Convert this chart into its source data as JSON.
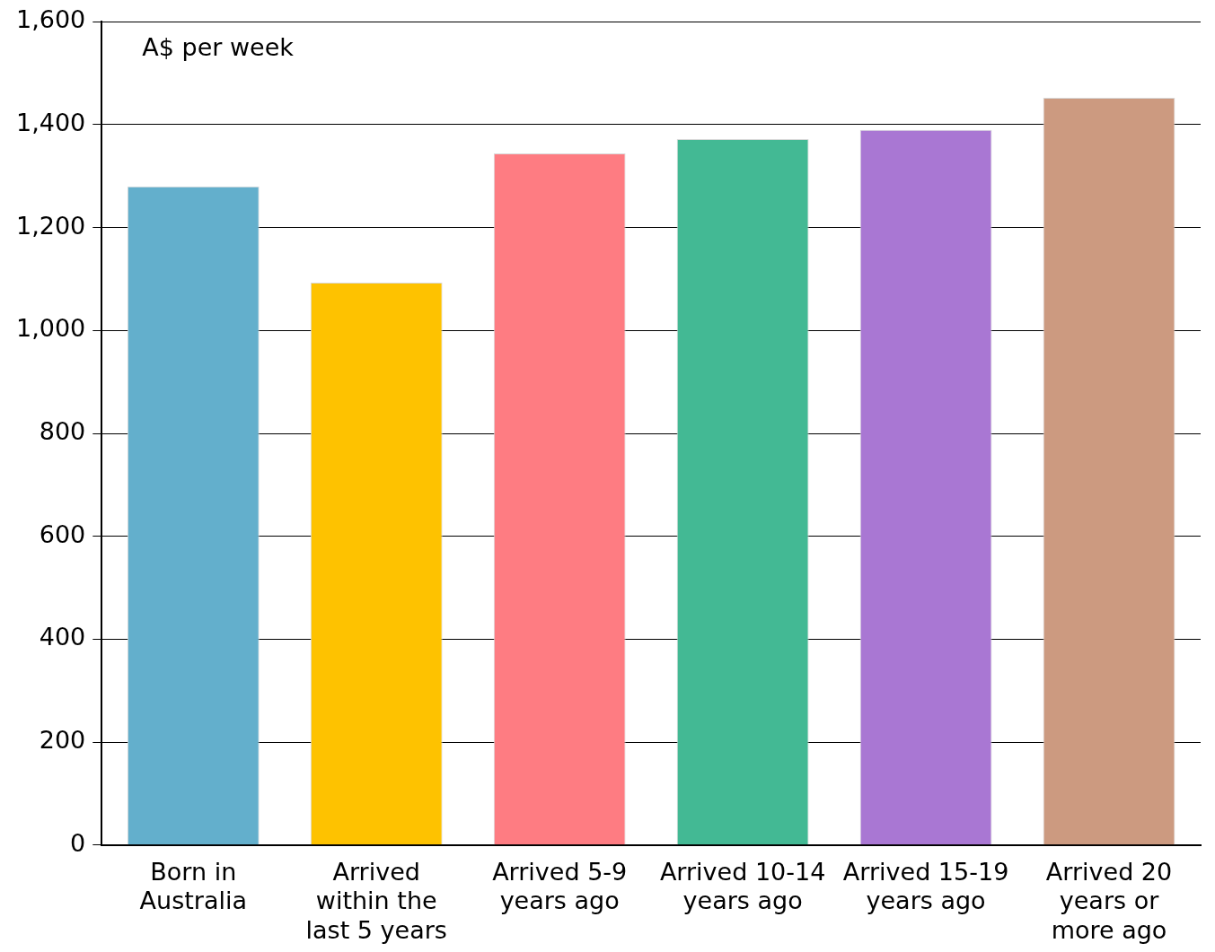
{
  "chart_data": {
    "type": "bar",
    "ylabel": "A$ per week",
    "categories": [
      "Born in Australia",
      "Arrived within the last 5 years",
      "Arrived 5-9 years ago",
      "Arrived 10-14 years ago",
      "Arrived 15-19 years ago",
      "Arrived 20 years or more ago"
    ],
    "values": [
      1280,
      1093,
      1344,
      1372,
      1390,
      1452
    ],
    "colors": [
      "#63afcc",
      "#fec200",
      "#fe7c82",
      "#43b994",
      "#a977d3",
      "#cc9a80"
    ],
    "ylim": [
      0,
      1600
    ],
    "yticks": [
      0,
      200,
      400,
      600,
      800,
      {
        "value": 1000,
        "label": "1,000"
      },
      {
        "value": 1200,
        "label": "1,200"
      },
      {
        "value": 1400,
        "label": "1,400"
      },
      {
        "value": 1600,
        "label": "1,600"
      }
    ],
    "grid": "y"
  }
}
